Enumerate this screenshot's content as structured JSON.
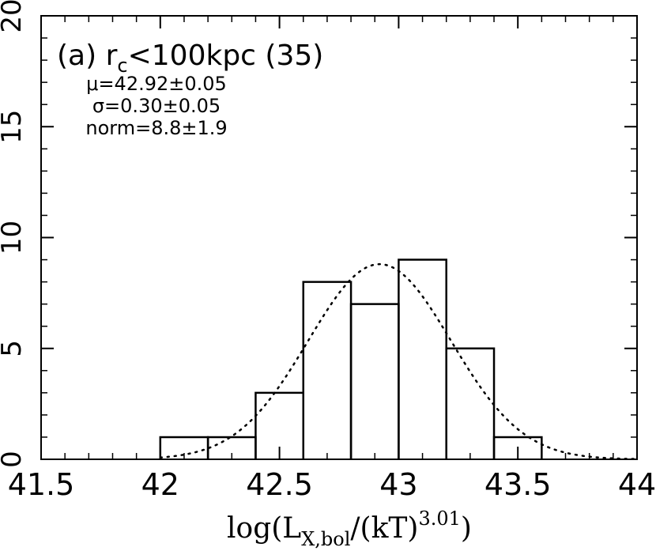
{
  "chart_data": {
    "type": "histogram",
    "title": "",
    "xlabel": {
      "prefix": "log(L",
      "sub": "X,bol",
      "mid": "/(kT)",
      "sup": "3.01",
      "suffix": ")"
    },
    "ylabel": "",
    "xlim": [
      41.5,
      44
    ],
    "ylim": [
      0,
      20
    ],
    "x_ticks": [
      {
        "value": 41.5,
        "label": "41.5"
      },
      {
        "value": 42,
        "label": "42"
      },
      {
        "value": 42.5,
        "label": "42.5"
      },
      {
        "value": 43,
        "label": "43"
      },
      {
        "value": 43.5,
        "label": "43.5"
      },
      {
        "value": 44,
        "label": "44"
      }
    ],
    "y_ticks": [
      {
        "value": 0,
        "label": "0"
      },
      {
        "value": 5,
        "label": "5"
      },
      {
        "value": 10,
        "label": "10"
      },
      {
        "value": 15,
        "label": "15"
      },
      {
        "value": 20,
        "label": "20"
      }
    ],
    "bin_width": 0.2,
    "bins": [
      {
        "x0": 42.0,
        "x1": 42.2,
        "count": 1
      },
      {
        "x0": 42.2,
        "x1": 42.4,
        "count": 1
      },
      {
        "x0": 42.4,
        "x1": 42.6,
        "count": 3
      },
      {
        "x0": 42.6,
        "x1": 42.8,
        "count": 8
      },
      {
        "x0": 42.8,
        "x1": 43.0,
        "count": 7
      },
      {
        "x0": 43.0,
        "x1": 43.2,
        "count": 9
      },
      {
        "x0": 43.2,
        "x1": 43.4,
        "count": 5
      },
      {
        "x0": 43.4,
        "x1": 43.6,
        "count": 1
      }
    ],
    "gaussian_fit": {
      "mu": 42.92,
      "sigma": 0.3,
      "norm": 8.8,
      "line_style": "dotted"
    },
    "annotation": {
      "label_prefix": "(a) r",
      "label_sub": "c",
      "label_suffix": "<100kpc (35)",
      "lines": [
        "μ=42.92±0.05",
        "σ=0.30±0.05",
        "norm=8.8±1.9"
      ]
    },
    "grid": false,
    "colors": {
      "line": "#000000",
      "background": "#ffffff"
    }
  }
}
